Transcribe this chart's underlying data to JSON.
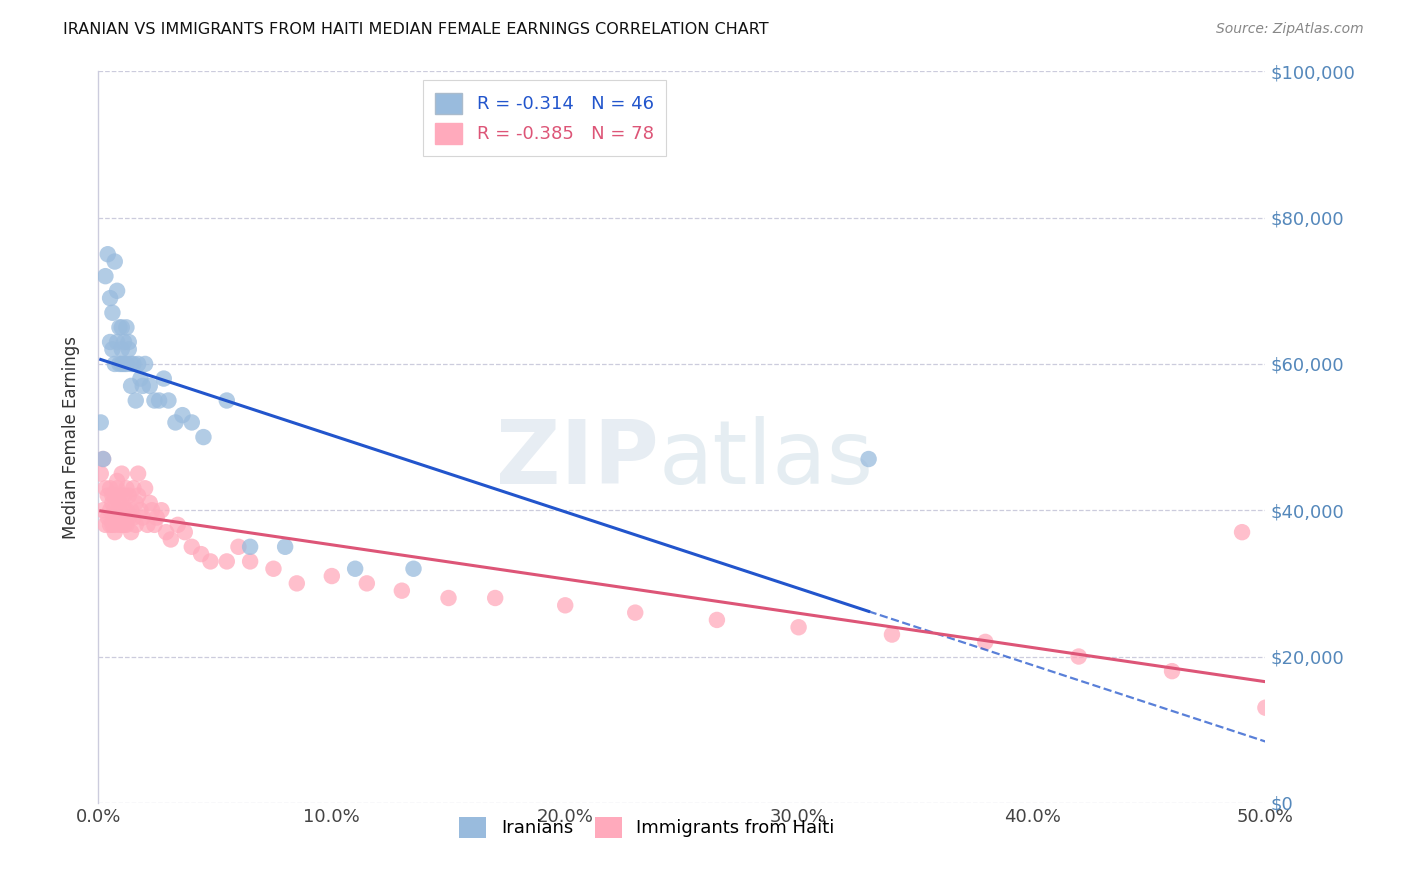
{
  "title": "IRANIAN VS IMMIGRANTS FROM HAITI MEDIAN FEMALE EARNINGS CORRELATION CHART",
  "source": "Source: ZipAtlas.com",
  "ylabel": "Median Female Earnings",
  "xlabel_ticks": [
    "0.0%",
    "10.0%",
    "20.0%",
    "30.0%",
    "40.0%",
    "50.0%"
  ],
  "xlabel_tick_vals": [
    0.0,
    0.1,
    0.2,
    0.3,
    0.4,
    0.5
  ],
  "ylabel_ticks": [
    "$0",
    "$20,000",
    "$40,000",
    "$60,000",
    "$80,000",
    "$100,000"
  ],
  "ylabel_tick_vals": [
    0,
    20000,
    40000,
    60000,
    80000,
    100000
  ],
  "xlim": [
    0.0,
    0.5
  ],
  "ylim": [
    0,
    100000
  ],
  "watermark_zip": "ZIP",
  "watermark_atlas": "atlas",
  "legend_entry1": "R = -0.314   N = 46",
  "legend_entry2": "R = -0.385   N = 78",
  "legend_label1": "Iranians",
  "legend_label2": "Immigrants from Haiti",
  "color_blue": "#99BBDD",
  "color_pink": "#FFAABC",
  "line_blue": "#2255CC",
  "line_pink": "#DD5577",
  "background": "#FFFFFF",
  "grid_color": "#CCCCDD",
  "right_axis_color": "#5588BB",
  "iranians_x": [
    0.001,
    0.002,
    0.003,
    0.004,
    0.005,
    0.005,
    0.006,
    0.006,
    0.007,
    0.007,
    0.008,
    0.008,
    0.009,
    0.009,
    0.01,
    0.01,
    0.01,
    0.011,
    0.011,
    0.012,
    0.012,
    0.013,
    0.013,
    0.014,
    0.014,
    0.015,
    0.016,
    0.017,
    0.018,
    0.019,
    0.02,
    0.022,
    0.024,
    0.026,
    0.028,
    0.03,
    0.033,
    0.036,
    0.04,
    0.045,
    0.055,
    0.065,
    0.08,
    0.11,
    0.135,
    0.33
  ],
  "iranians_y": [
    52000,
    47000,
    72000,
    75000,
    63000,
    69000,
    67000,
    62000,
    60000,
    74000,
    63000,
    70000,
    60000,
    65000,
    62000,
    65000,
    60000,
    60000,
    63000,
    60000,
    65000,
    62000,
    63000,
    60000,
    57000,
    60000,
    55000,
    60000,
    58000,
    57000,
    60000,
    57000,
    55000,
    55000,
    58000,
    55000,
    52000,
    53000,
    52000,
    50000,
    55000,
    35000,
    35000,
    32000,
    32000,
    47000
  ],
  "haiti_x": [
    0.001,
    0.002,
    0.002,
    0.003,
    0.003,
    0.004,
    0.004,
    0.005,
    0.005,
    0.005,
    0.006,
    0.006,
    0.006,
    0.007,
    0.007,
    0.007,
    0.007,
    0.008,
    0.008,
    0.008,
    0.009,
    0.009,
    0.009,
    0.01,
    0.01,
    0.01,
    0.011,
    0.011,
    0.011,
    0.012,
    0.012,
    0.012,
    0.013,
    0.013,
    0.014,
    0.014,
    0.015,
    0.015,
    0.016,
    0.016,
    0.017,
    0.017,
    0.018,
    0.019,
    0.02,
    0.021,
    0.022,
    0.023,
    0.024,
    0.025,
    0.027,
    0.029,
    0.031,
    0.034,
    0.037,
    0.04,
    0.044,
    0.048,
    0.055,
    0.06,
    0.065,
    0.075,
    0.085,
    0.1,
    0.115,
    0.13,
    0.15,
    0.17,
    0.2,
    0.23,
    0.265,
    0.3,
    0.34,
    0.38,
    0.42,
    0.46,
    0.49,
    0.5
  ],
  "haiti_y": [
    45000,
    47000,
    40000,
    38000,
    43000,
    39000,
    42000,
    40000,
    38000,
    43000,
    41000,
    38000,
    42000,
    40000,
    37000,
    42000,
    38000,
    43000,
    39000,
    44000,
    40000,
    38000,
    41000,
    42000,
    38000,
    45000,
    40000,
    38000,
    42000,
    40000,
    38000,
    43000,
    39000,
    42000,
    40000,
    37000,
    39000,
    43000,
    41000,
    38000,
    42000,
    45000,
    40000,
    39000,
    43000,
    38000,
    41000,
    40000,
    38000,
    39000,
    40000,
    37000,
    36000,
    38000,
    37000,
    35000,
    34000,
    33000,
    33000,
    35000,
    33000,
    32000,
    30000,
    31000,
    30000,
    29000,
    28000,
    28000,
    27000,
    26000,
    25000,
    24000,
    23000,
    22000,
    20000,
    18000,
    37000,
    13000
  ]
}
